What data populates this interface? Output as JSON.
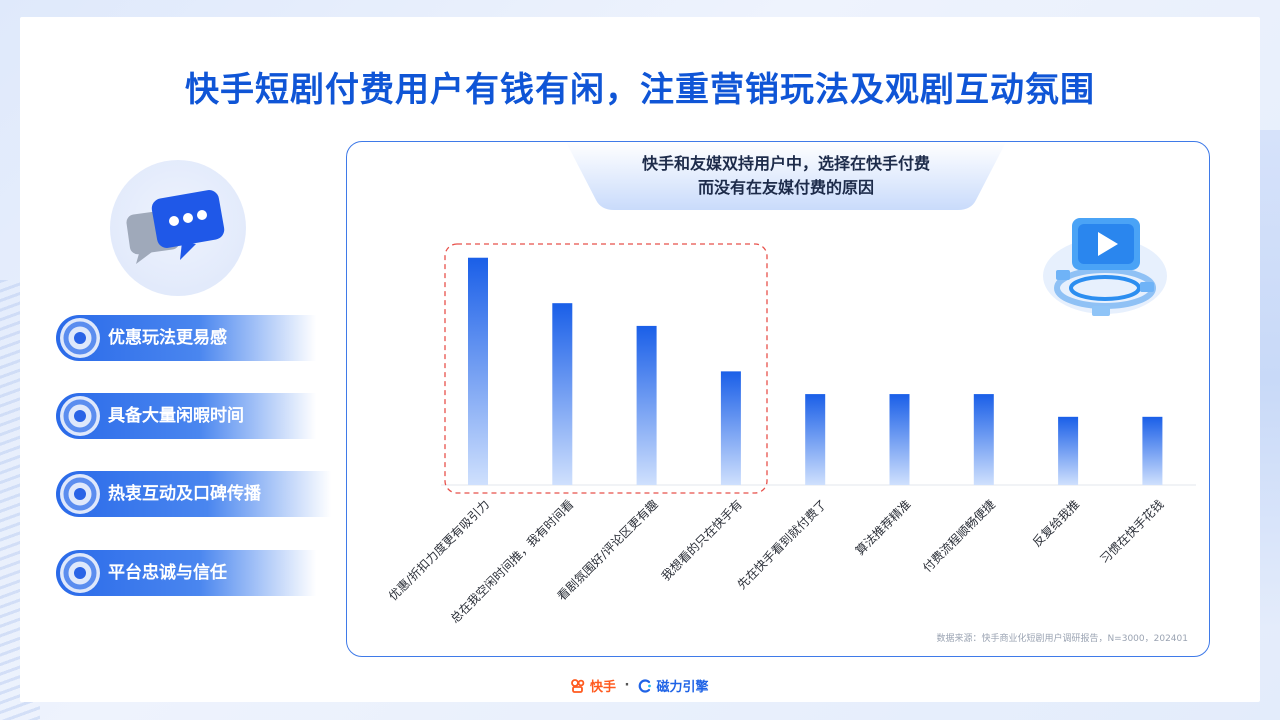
{
  "page": {
    "title": "快手短剧付费用户有钱有闲，注重营销玩法及观剧互动氛围"
  },
  "left_points": [
    {
      "label": "优惠玩法更易感"
    },
    {
      "label": "具备大量闲暇时间"
    },
    {
      "label": "热衷互动及口碑传播"
    },
    {
      "label": "平台忠诚与信任"
    }
  ],
  "chart_data": {
    "type": "bar",
    "title_line1": "快手和友媒双持用户中，选择在快手付费",
    "title_line2": "而没有在友媒付费的原因",
    "categories": [
      "优惠/折扣力度更有吸引力",
      "总在我空闲时间推，我有时间看",
      "看剧氛围好/评论区更有趣",
      "我想看的只在快手有",
      "先在快手看到就付费了",
      "算法推荐精准",
      "付费流程顺畅便捷",
      "反复给我推",
      "习惯在快手花钱"
    ],
    "values": [
      10,
      8,
      7,
      5,
      4,
      4,
      4,
      3,
      3
    ],
    "ylim": [
      0,
      11
    ],
    "highlighted_indices": [
      0,
      1,
      2,
      3
    ],
    "bar_color_top": "#1a5fe8",
    "bar_color_bottom": "#cfe0fd",
    "highlight_border": "#e8504a",
    "grid": false
  },
  "source": "数据来源：快手商业化短剧用户调研报告，N=3000，202401",
  "footer": {
    "brand1": "快手",
    "separator": "·",
    "brand2": "磁力引擎"
  },
  "colors": {
    "accent": "#0f55d6",
    "panel_border": "#3f7ae8"
  }
}
